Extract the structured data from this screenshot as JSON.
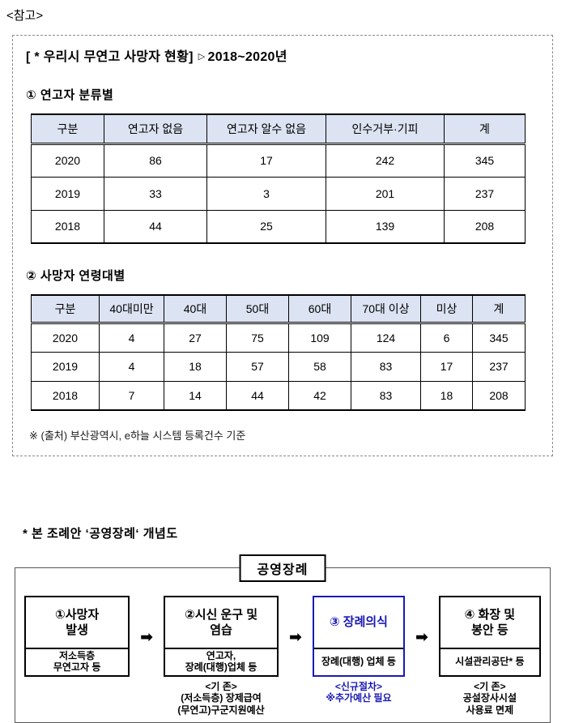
{
  "page": {
    "ref_label": "<참고>"
  },
  "report": {
    "title": "[ * 우리시 무연고 사망자 현황]",
    "title_marker": "▷",
    "title_period": "2018~2020년",
    "section1_heading": "① 연고자 분류별",
    "table1": {
      "type": "table",
      "columns": [
        "구분",
        "연고자 없음",
        "연고자 알수 없음",
        "인수거부·기피",
        "계"
      ],
      "rows": [
        [
          "2020",
          "86",
          "17",
          "242",
          "345"
        ],
        [
          "2019",
          "33",
          "3",
          "201",
          "237"
        ],
        [
          "2018",
          "44",
          "25",
          "139",
          "208"
        ]
      ]
    },
    "section2_heading": "② 사망자 연령대별",
    "table2": {
      "type": "table",
      "columns": [
        "구분",
        "40대미만",
        "40대",
        "50대",
        "60대",
        "70대 이상",
        "미상",
        "계"
      ],
      "rows": [
        [
          "2020",
          "4",
          "27",
          "75",
          "109",
          "124",
          "6",
          "345"
        ],
        [
          "2019",
          "4",
          "18",
          "57",
          "58",
          "83",
          "17",
          "237"
        ],
        [
          "2018",
          "7",
          "14",
          "44",
          "42",
          "83",
          "18",
          "208"
        ]
      ]
    },
    "footnote": "※ (출처) 부산광역시, e하늘 시스템 등록건수 기준"
  },
  "diagram": {
    "heading": "* 본 조례안 ‘공영장례‘ 개념도",
    "title_box_label": "공영장례",
    "arrow_glyph": "➡",
    "colors": {
      "highlight_blue": "#1a1ab4",
      "table_header_bg": "#dce3f2"
    },
    "steps": [
      {
        "title": "①사망자\n발생",
        "subtitle": "저소득층\n무연고자 등",
        "note": ""
      },
      {
        "title": "②시신 운구 및\n염습",
        "subtitle": "연고자,\n장례(대행)업체 등",
        "note": "<기 존>\n(저소득층) 장제급여\n(무연고)구군지원예산"
      },
      {
        "title": "③ 장례의식",
        "subtitle": "장례(대행) 업체 등",
        "note": "<신규절차>\n※추가예산 필요"
      },
      {
        "title": "④ 화장 및\n봉안 등",
        "subtitle": "시설관리공단* 등",
        "note": "<기 존>\n공설장사시설\n사용료 면제"
      }
    ]
  }
}
